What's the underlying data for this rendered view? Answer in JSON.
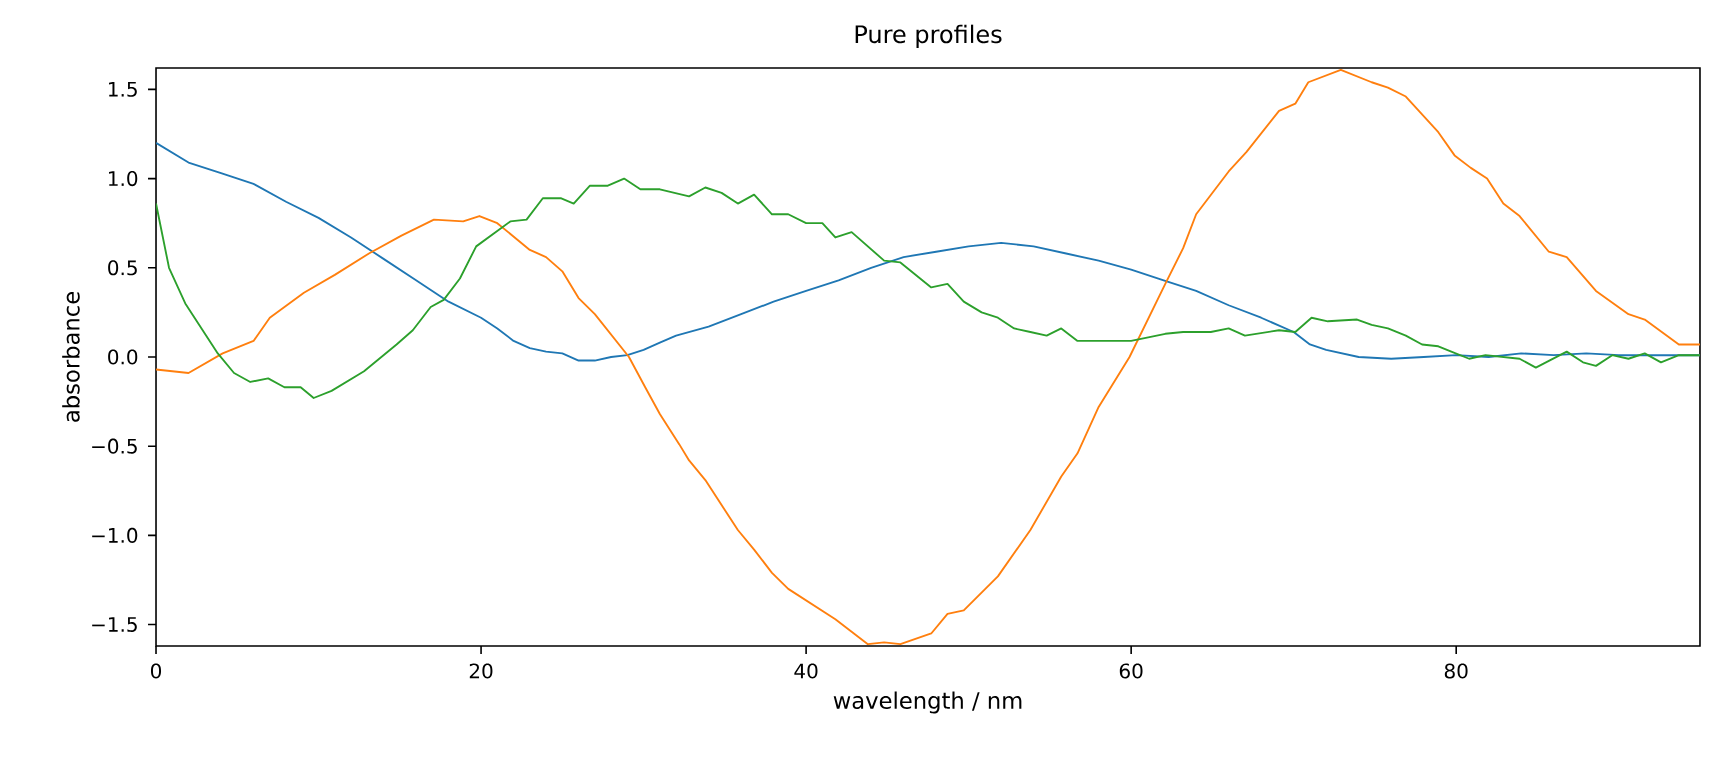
{
  "chart_data": {
    "type": "line",
    "title": "Pure profiles",
    "xlabel": "wavelength / nm",
    "ylabel": "absorbance",
    "xlim": [
      0,
      95
    ],
    "ylim": [
      -1.62,
      1.62
    ],
    "xticks": [
      0,
      20,
      40,
      60,
      80
    ],
    "yticks": [
      {
        "value": -1.5,
        "label": "−1.5"
      },
      {
        "value": -1.0,
        "label": "−1.0"
      },
      {
        "value": -0.5,
        "label": "−0.5"
      },
      {
        "value": 0,
        "label": "0.0"
      },
      {
        "value": 0.5,
        "label": "0.5"
      },
      {
        "value": 1.0,
        "label": "1.0"
      },
      {
        "value": 1.5,
        "label": "1.5"
      }
    ],
    "series": [
      {
        "color": "#1f77b4",
        "x": [
          0,
          2,
          4,
          6,
          8,
          10,
          12,
          14,
          16,
          17,
          18,
          20,
          21,
          22,
          23,
          24,
          25,
          26,
          27,
          28,
          29,
          30,
          31,
          32,
          34,
          36,
          38,
          40,
          42,
          44,
          46,
          48,
          50,
          52,
          54,
          56,
          58,
          60,
          62,
          64,
          66,
          68,
          70,
          71,
          72,
          74,
          76,
          78,
          80,
          82,
          84,
          86,
          88,
          90,
          92,
          95
        ],
        "values": [
          1.2,
          1.09,
          1.03,
          0.97,
          0.87,
          0.78,
          0.67,
          0.55,
          0.43,
          0.37,
          0.31,
          0.22,
          0.16,
          0.09,
          0.05,
          0.03,
          0.02,
          -0.02,
          -0.02,
          0.0,
          0.01,
          0.04,
          0.08,
          0.12,
          0.17,
          0.24,
          0.31,
          0.37,
          0.43,
          0.5,
          0.56,
          0.59,
          0.62,
          0.64,
          0.62,
          0.58,
          0.54,
          0.49,
          0.43,
          0.37,
          0.29,
          0.22,
          0.14,
          0.07,
          0.04,
          0.0,
          -0.01,
          0.0,
          0.01,
          0.0,
          0.02,
          0.01,
          0.02,
          0.01,
          0.01,
          0.01
        ]
      },
      {
        "color": "#ff7f0e",
        "x": [
          0,
          2,
          4.1,
          6,
          7,
          9.1,
          11,
          13.1,
          15.1,
          17.1,
          18.9,
          19.9,
          21,
          23,
          24,
          25,
          26,
          27,
          29.1,
          30.1,
          31,
          32.2,
          32.8,
          33.8,
          35.8,
          36.8,
          37.9,
          38.9,
          41.8,
          42.8,
          43.8,
          44.8,
          45.8,
          47.7,
          48.7,
          49.7,
          51.8,
          53.8,
          55.7,
          56.7,
          58,
          59.9,
          62.1,
          63.2,
          64,
          66,
          67.1,
          69.1,
          70.1,
          70.9,
          72.9,
          74.8,
          75.8,
          76.9,
          78.9,
          79.9,
          80.9,
          81.9,
          82.9,
          83.9,
          85.7,
          86.8,
          88.6,
          90.6,
          91.6,
          93.7,
          95
        ],
        "values": [
          -0.07,
          -0.09,
          0.02,
          0.09,
          0.22,
          0.36,
          0.46,
          0.58,
          0.68,
          0.77,
          0.76,
          0.79,
          0.75,
          0.6,
          0.56,
          0.48,
          0.33,
          0.24,
          0.0,
          -0.17,
          -0.32,
          -0.49,
          -0.58,
          -0.69,
          -0.97,
          -1.08,
          -1.21,
          -1.3,
          -1.47,
          -1.54,
          -1.61,
          -1.6,
          -1.61,
          -1.55,
          -1.44,
          -1.42,
          -1.23,
          -0.97,
          -0.67,
          -0.54,
          -0.28,
          0.0,
          0.41,
          0.61,
          0.8,
          1.04,
          1.15,
          1.38,
          1.42,
          1.54,
          1.61,
          1.54,
          1.51,
          1.46,
          1.26,
          1.13,
          1.06,
          1.0,
          0.86,
          0.79,
          0.59,
          0.56,
          0.37,
          0.24,
          0.21,
          0.07,
          0.07
        ]
      },
      {
        "color": "#2ca02c",
        "x": [
          0,
          0.8,
          1.8,
          3.8,
          4.8,
          5.8,
          6.9,
          7.9,
          8.9,
          9.7,
          10.8,
          12.8,
          14.8,
          15.8,
          16.9,
          17.7,
          18.7,
          19.7,
          21.8,
          22.8,
          23.8,
          24.9,
          25.7,
          26.7,
          27.8,
          28.8,
          29.8,
          31,
          32.8,
          33.8,
          34.8,
          35.8,
          36.8,
          37.9,
          38.9,
          40,
          41,
          41.8,
          42.8,
          44.8,
          45.8,
          47.7,
          48.7,
          49.7,
          50.8,
          51.8,
          52.8,
          53.8,
          54.8,
          55.7,
          56.7,
          60,
          62.1,
          63.2,
          64.9,
          66,
          67,
          69.1,
          70.1,
          71.1,
          72.1,
          73.9,
          74.8,
          75.8,
          76.9,
          77.9,
          78.9,
          79.7,
          80.8,
          81.8,
          83.9,
          84.9,
          86.8,
          87.8,
          88.6,
          89.6,
          90.6,
          91.6,
          92.6,
          93.7,
          95
        ],
        "values": [
          0.86,
          0.5,
          0.3,
          0.02,
          -0.09,
          -0.14,
          -0.12,
          -0.17,
          -0.17,
          -0.23,
          -0.19,
          -0.08,
          0.07,
          0.15,
          0.28,
          0.32,
          0.44,
          0.62,
          0.76,
          0.77,
          0.89,
          0.89,
          0.86,
          0.96,
          0.96,
          1.0,
          0.94,
          0.94,
          0.9,
          0.95,
          0.92,
          0.86,
          0.91,
          0.8,
          0.8,
          0.75,
          0.75,
          0.67,
          0.7,
          0.54,
          0.53,
          0.39,
          0.41,
          0.31,
          0.25,
          0.22,
          0.16,
          0.14,
          0.12,
          0.16,
          0.09,
          0.09,
          0.13,
          0.14,
          0.14,
          0.16,
          0.12,
          0.15,
          0.14,
          0.22,
          0.2,
          0.21,
          0.18,
          0.16,
          0.12,
          0.07,
          0.06,
          0.03,
          -0.01,
          0.01,
          -0.01,
          -0.06,
          0.03,
          -0.03,
          -0.05,
          0.01,
          -0.01,
          0.02,
          -0.03,
          0.01,
          0.01
        ]
      }
    ]
  }
}
